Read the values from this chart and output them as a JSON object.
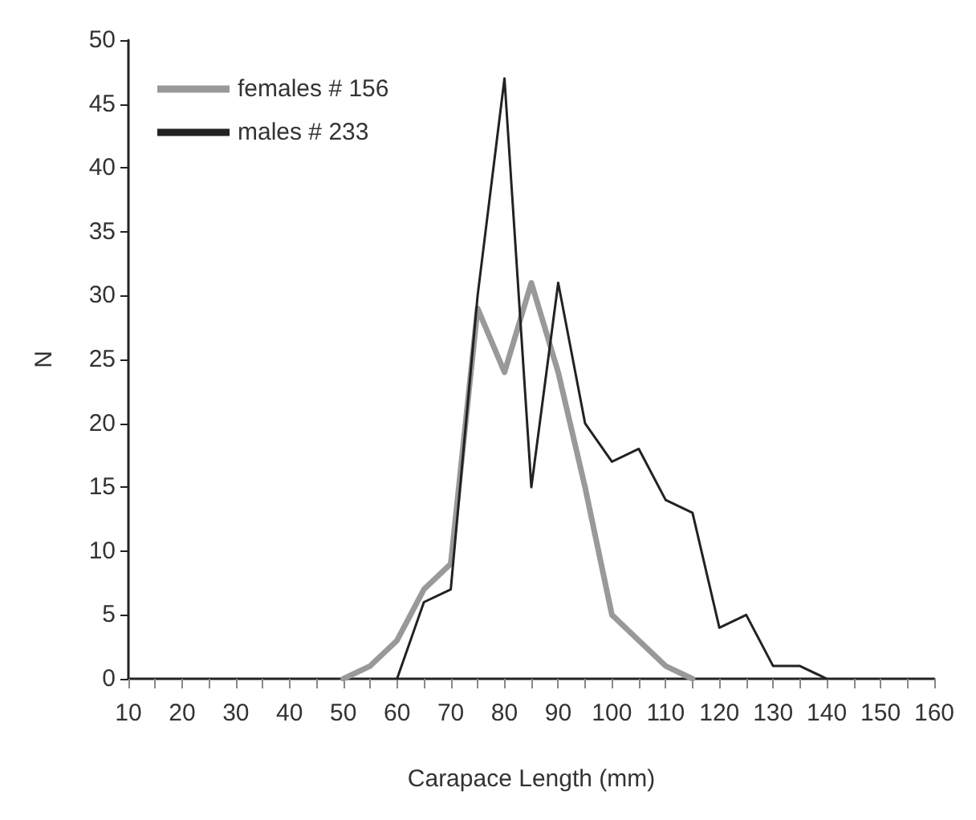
{
  "chart_data": {
    "type": "line",
    "xlabel": "Carapace Length (mm)",
    "ylabel": "N",
    "categories": [
      "10",
      null,
      "20",
      null,
      "30",
      null,
      "40",
      null,
      "50",
      null,
      "60",
      null,
      "70",
      null,
      "80",
      null,
      "90",
      null,
      "100",
      null,
      "110",
      null,
      "120",
      null,
      "130",
      null,
      "140",
      null,
      "150",
      null,
      "160"
    ],
    "series": [
      {
        "name": "females # 156",
        "color": "#999999",
        "values": [
          null,
          null,
          null,
          null,
          null,
          null,
          null,
          null,
          0,
          1,
          3,
          7,
          9,
          29,
          24,
          31,
          24,
          15,
          5,
          3,
          1,
          0,
          null,
          null,
          null,
          null,
          null,
          null,
          null,
          null,
          null
        ]
      },
      {
        "name": "males # 233",
        "color": "#222222",
        "values": [
          null,
          null,
          null,
          null,
          null,
          null,
          null,
          null,
          null,
          null,
          0,
          6,
          7,
          30,
          47,
          15,
          31,
          20,
          17,
          18,
          14,
          13,
          4,
          5,
          1,
          1,
          0,
          null,
          null,
          null,
          null
        ]
      }
    ],
    "ylim": [
      0,
      50
    ],
    "yticks": [
      0,
      5,
      10,
      15,
      20,
      25,
      30,
      35,
      40,
      45,
      50
    ],
    "grid": false,
    "legend": "top left",
    "marker": "none",
    "line_style": "solid"
  }
}
